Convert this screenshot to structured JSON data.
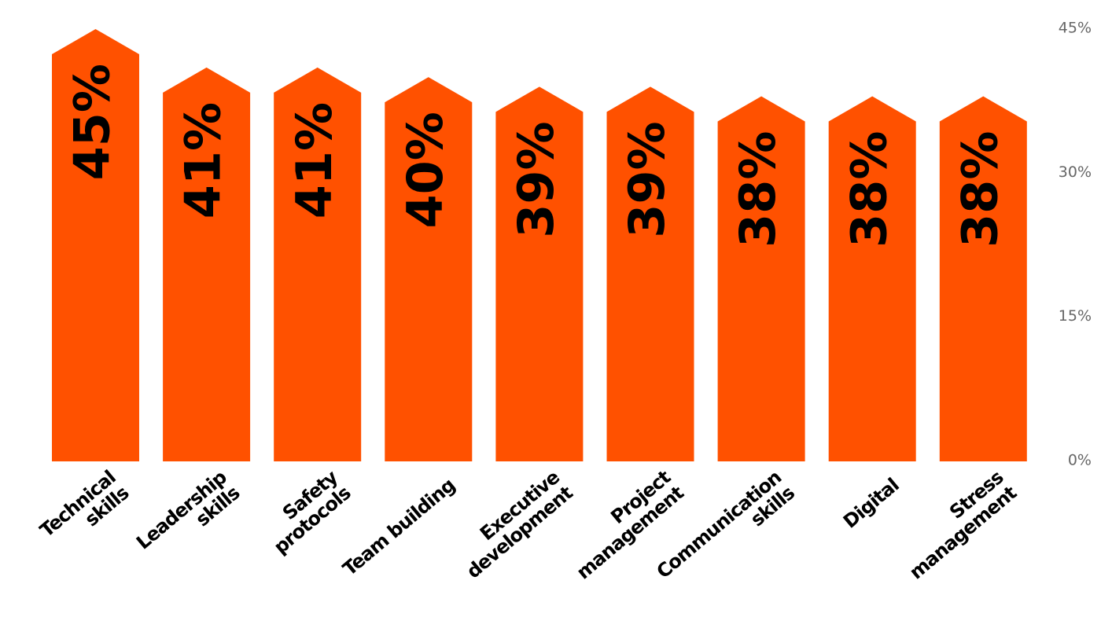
{
  "chart_data": {
    "type": "bar",
    "categories": [
      [
        "Technical",
        "skills"
      ],
      [
        "Leadership",
        "skills"
      ],
      [
        "Safety",
        "protocols"
      ],
      [
        "Team building"
      ],
      [
        "Executive",
        "development"
      ],
      [
        "Project",
        "management"
      ],
      [
        "Communication",
        "skills"
      ],
      [
        "Digital"
      ],
      [
        "Stress",
        "management"
      ]
    ],
    "values": [
      45,
      41,
      41,
      40,
      39,
      39,
      38,
      38,
      38
    ],
    "value_labels": [
      "45%",
      "41%",
      "41%",
      "40%",
      "39%",
      "39%",
      "38%",
      "38%",
      "38%"
    ],
    "y_ticks": [
      {
        "value": 0,
        "label": "0%"
      },
      {
        "value": 15,
        "label": "15%"
      },
      {
        "value": 30,
        "label": "30%"
      },
      {
        "value": 45,
        "label": "45%"
      }
    ],
    "ylim": [
      0,
      45
    ],
    "y_axis_side": "right",
    "grid": false,
    "bar_shape": "arrow",
    "colors": {
      "bar": "#FF5100",
      "value_text": "#000000",
      "tick_text": "#666666",
      "category_text": "#000000"
    }
  }
}
